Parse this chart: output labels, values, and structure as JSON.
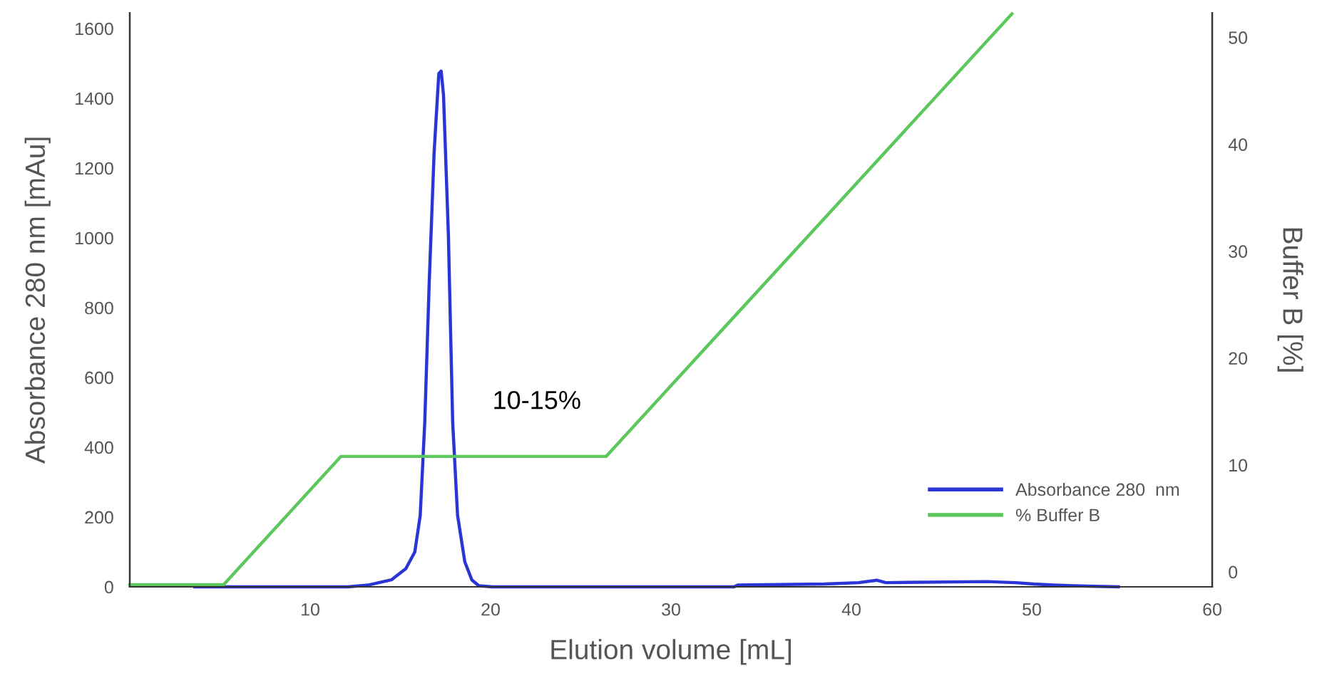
{
  "chart_data": {
    "type": "line",
    "xlabel": "Elution volume [mL]",
    "ylabel": "Absorbance 280 nm [mAu]",
    "y2label": "Buffer B [%]",
    "xlim": [
      0,
      60
    ],
    "xticks": [
      10,
      20,
      30,
      40,
      50,
      60
    ],
    "ylim": [
      0,
      1645
    ],
    "yticks": [
      0,
      200,
      400,
      600,
      800,
      1000,
      1200,
      1400,
      1600
    ],
    "y2lim": [
      -1.4,
      52.3
    ],
    "y2ticks": [
      0,
      10,
      20,
      30,
      40,
      50
    ],
    "legend": "bottom right",
    "grid": false,
    "marker": "none",
    "line_style": "solid",
    "annotations": [
      "10-15%"
    ],
    "series": [
      {
        "name": "Absorbance 280  nm",
        "color": "#2b35d6",
        "x": [
          3.6,
          12.1,
          13.2,
          14.5,
          15.3,
          15.8,
          16.1,
          16.35,
          16.6,
          16.87,
          17.13,
          17.26,
          17.39,
          17.66,
          17.9,
          18.17,
          18.57,
          18.96,
          19.35,
          20.1,
          33.5,
          33.7,
          38.5,
          40.4,
          41.4,
          41.9,
          47.5,
          49.1,
          50.1,
          51.2,
          52.3,
          54.8
        ],
        "values": [
          0,
          0,
          5,
          20,
          52,
          100,
          205,
          470,
          875,
          1245,
          1471,
          1478,
          1410,
          1010,
          470,
          205,
          72,
          20,
          3,
          0,
          0,
          5,
          8,
          12,
          19,
          12,
          15,
          12,
          8,
          5,
          3,
          0
        ]
      },
      {
        "name": "% Buffer B",
        "color": "#5cc75c",
        "axis": "y2",
        "x": [
          0,
          5.2,
          11.7,
          26.4,
          48.9
        ],
        "values": [
          -1.2,
          -1.2,
          10.8,
          10.8,
          52.2
        ]
      }
    ]
  }
}
